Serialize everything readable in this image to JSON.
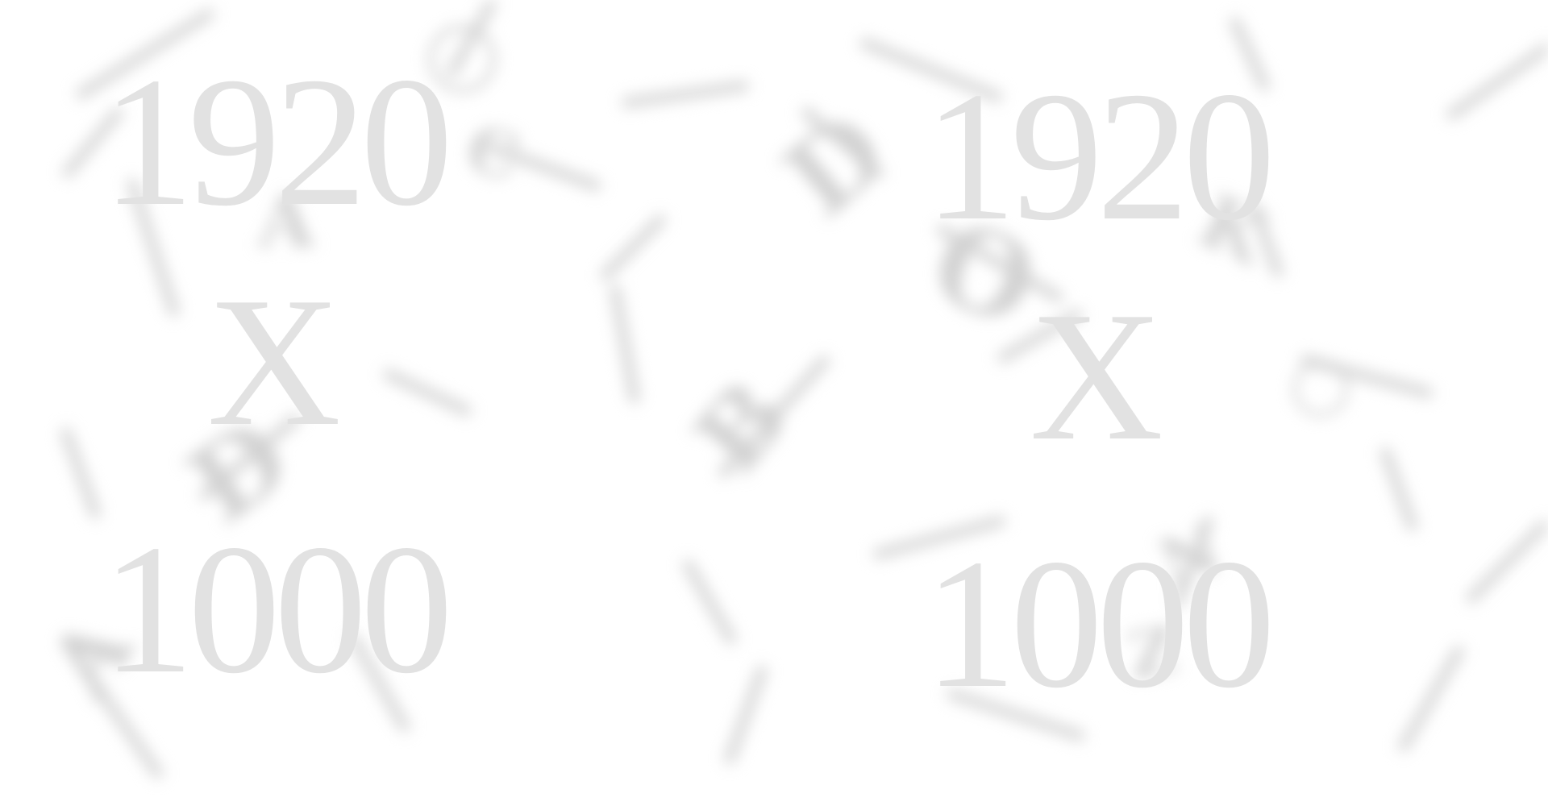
{
  "placeholder": {
    "width_text": "1920",
    "separator": "X",
    "height_text": "1000",
    "text_color": "#e2e2e2",
    "background_color": "#ffffff"
  },
  "copies": [
    {
      "width_text": "1920",
      "separator": "X",
      "height_text": "1000"
    },
    {
      "width_text": "1920",
      "separator": "X",
      "height_text": "1000"
    }
  ]
}
